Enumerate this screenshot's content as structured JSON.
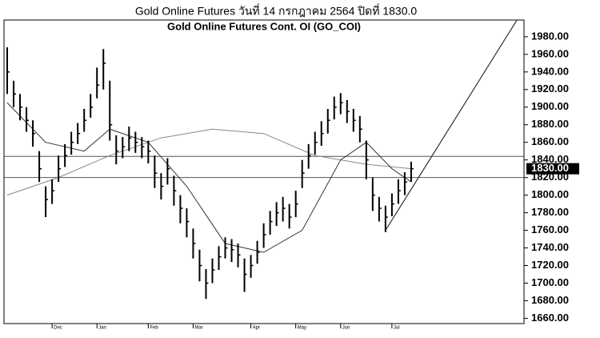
{
  "chart_data": {
    "type": "ohlc",
    "title": "Gold Online Futures วันที่    14 กรกฎาคม   2564 ปิดที่    1830.0",
    "subtitle": "Gold  Online  Futures  Cont.  OI  (GO_COI)",
    "xlim": [
      -0.5,
      80.6
    ],
    "xticks": [
      {
        "value": 7,
        "label": "Dec"
      },
      {
        "value": 14,
        "label": "Jan"
      },
      {
        "value": 22,
        "label": "Feb"
      },
      {
        "value": 29,
        "label": "Mar"
      },
      {
        "value": 38,
        "label": "Apr"
      },
      {
        "value": 45,
        "label": "May"
      },
      {
        "value": 52,
        "label": "Jun"
      },
      {
        "value": 60,
        "label": "Jul"
      }
    ],
    "ylim": [
      1654,
      1999
    ],
    "yticks": [
      {
        "value": 1660,
        "label": "1660.00"
      },
      {
        "value": 1680,
        "label": "1680.00"
      },
      {
        "value": 1700,
        "label": "1700.00"
      },
      {
        "value": 1720,
        "label": "1720.00"
      },
      {
        "value": 1740,
        "label": "1740.00"
      },
      {
        "value": 1760,
        "label": "1760.00"
      },
      {
        "value": 1780,
        "label": "1780.00"
      },
      {
        "value": 1800,
        "label": "1800.00"
      },
      {
        "value": 1820,
        "label": "1820.00"
      },
      {
        "value": 1840,
        "label": "1840.00"
      },
      {
        "value": 1860,
        "label": "1860.00"
      },
      {
        "value": 1880,
        "label": "1880.00"
      },
      {
        "value": 1900,
        "label": "1900.00"
      },
      {
        "value": 1920,
        "label": "1920.00"
      },
      {
        "value": 1940,
        "label": "1940.00"
      },
      {
        "value": 1960,
        "label": "1960.00"
      },
      {
        "value": 1980,
        "label": "1980.00"
      }
    ],
    "color": "#000000",
    "high": [
      1968,
      1930,
      1915,
      1900,
      1885,
      1850,
      1810,
      1818,
      1845,
      1858,
      1872,
      1882,
      1898,
      1915,
      1945,
      1966,
      1930,
      1868,
      1866,
      1878,
      1872,
      1866,
      1862,
      1845,
      1825,
      1842,
      1822,
      1800,
      1785,
      1762,
      1738,
      1716,
      1728,
      1742,
      1752,
      1750,
      1745,
      1728,
      1732,
      1748,
      1768,
      1782,
      1792,
      1798,
      1790,
      1805,
      1840,
      1858,
      1872,
      1884,
      1898,
      1912,
      1916,
      1908,
      1898,
      1890,
      1862,
      1820,
      1798,
      1788,
      1802,
      1818,
      1826,
      1838
    ],
    "low": [
      1915,
      1900,
      1885,
      1872,
      1855,
      1815,
      1775,
      1790,
      1815,
      1832,
      1846,
      1858,
      1872,
      1888,
      1910,
      1920,
      1862,
      1835,
      1842,
      1850,
      1848,
      1842,
      1836,
      1808,
      1795,
      1812,
      1788,
      1768,
      1752,
      1728,
      1702,
      1682,
      1700,
      1715,
      1728,
      1724,
      1718,
      1690,
      1706,
      1722,
      1740,
      1755,
      1765,
      1770,
      1762,
      1775,
      1808,
      1830,
      1846,
      1856,
      1870,
      1886,
      1892,
      1882,
      1872,
      1860,
      1818,
      1782,
      1770,
      1758,
      1776,
      1790,
      1800,
      1815
    ],
    "close": [
      1940,
      1915,
      1900,
      1885,
      1870,
      1830,
      1795,
      1805,
      1830,
      1845,
      1860,
      1870,
      1885,
      1900,
      1925,
      1950,
      1880,
      1850,
      1855,
      1865,
      1860,
      1855,
      1850,
      1825,
      1810,
      1830,
      1805,
      1785,
      1770,
      1745,
      1720,
      1700,
      1715,
      1730,
      1740,
      1738,
      1732,
      1710,
      1720,
      1735,
      1755,
      1770,
      1780,
      1785,
      1775,
      1790,
      1825,
      1845,
      1860,
      1870,
      1885,
      1900,
      1905,
      1895,
      1885,
      1875,
      1840,
      1800,
      1785,
      1775,
      1790,
      1805,
      1815,
      1830
    ],
    "lines": [
      {
        "color": "#888888",
        "x": [
          0,
          8,
          16,
          24,
          32,
          40,
          48,
          56,
          63
        ],
        "values": [
          1800,
          1820,
          1845,
          1865,
          1875,
          1870,
          1845,
          1835,
          1830
        ]
      },
      {
        "color": "#333333",
        "x": [
          0,
          6,
          12,
          16,
          22,
          28,
          34,
          40,
          46,
          52,
          56,
          60,
          63
        ],
        "values": [
          1905,
          1860,
          1850,
          1875,
          1860,
          1810,
          1745,
          1735,
          1760,
          1840,
          1860,
          1830,
          1815
        ]
      }
    ],
    "hlines": [
      1844,
      1820
    ],
    "trendline": {
      "x": [
        59,
        79.5
      ],
      "y": [
        1760,
        1999
      ]
    },
    "last_value": 1830,
    "last_label": "1830.00"
  }
}
